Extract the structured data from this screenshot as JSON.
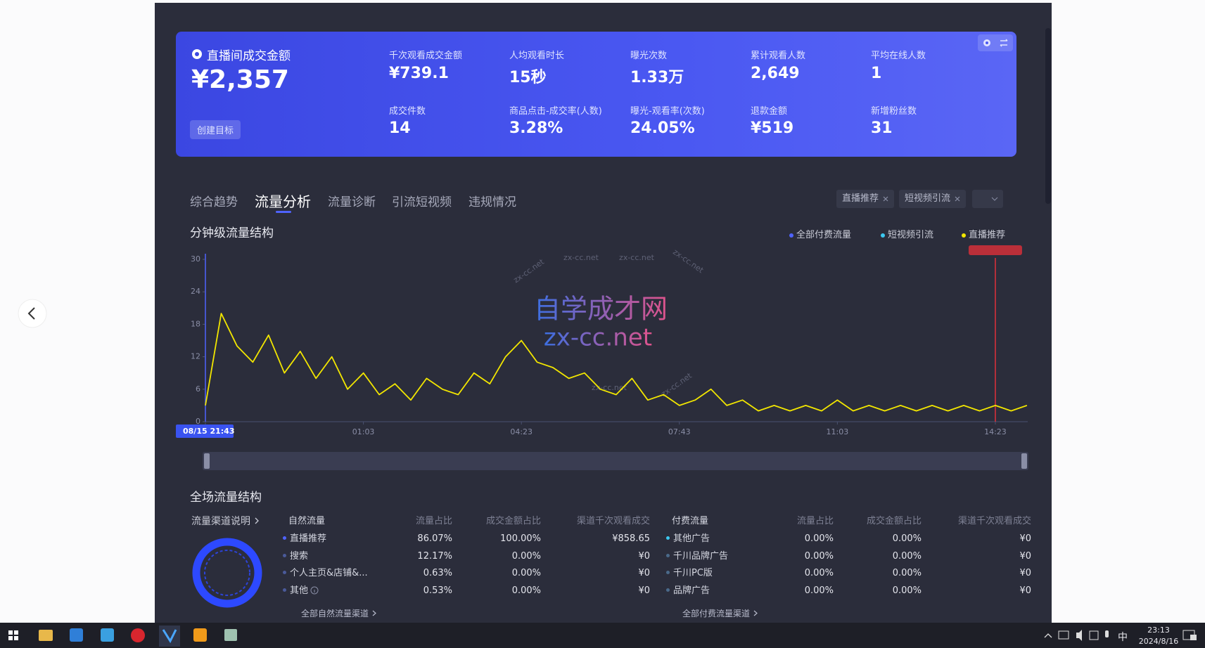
{
  "summary": {
    "title": "直播间成交金额",
    "value": "¥2,357",
    "button": "创建目标",
    "metrics": [
      {
        "label": "千次观看成交金额",
        "value": "¥739.1"
      },
      {
        "label": "人均观看时长",
        "value": "15秒"
      },
      {
        "label": "曝光次数",
        "value": "1.33万"
      },
      {
        "label": "累计观看人数",
        "value": "2,649"
      },
      {
        "label": "平均在线人数",
        "value": "1"
      },
      {
        "label": "成交件数",
        "value": "14"
      },
      {
        "label": "商品点击-成交率(人数)",
        "value": "3.28%"
      },
      {
        "label": "曝光-观看率(次数)",
        "value": "24.05%"
      },
      {
        "label": "退款金额",
        "value": "¥519"
      },
      {
        "label": "新增粉丝数",
        "value": "31"
      }
    ]
  },
  "tabs": {
    "items": [
      "综合趋势",
      "流量分析",
      "流量诊断",
      "引流短视频",
      "违规情况"
    ],
    "active": 1
  },
  "filters": [
    "直播推荐",
    "短视频引流"
  ],
  "chart_data": {
    "type": "line",
    "title": "分钟级流量结构",
    "other_series": [
      {
        "name": "全部付费流量",
        "color": "#4f63ff"
      },
      {
        "name": "短视频引流",
        "color": "#3cc8f0"
      }
    ],
    "x": [
      0,
      20,
      40,
      60,
      80,
      100,
      120,
      140,
      160,
      180,
      200,
      220,
      240,
      260,
      280,
      300,
      320,
      340,
      360,
      380,
      400,
      420,
      440,
      460,
      480,
      500,
      520,
      540,
      560,
      580,
      600,
      620,
      640,
      660,
      680,
      700,
      720,
      740,
      760,
      780,
      800,
      820,
      840,
      860,
      880,
      900,
      920,
      940,
      960,
      980,
      1000,
      1020,
      1040
    ],
    "series": [
      {
        "name": "直播推荐",
        "color": "#f2e600",
        "values": [
          3,
          20,
          14,
          11,
          16,
          9,
          13,
          8,
          12,
          6,
          9,
          5,
          7,
          4,
          8,
          6,
          5,
          9,
          7,
          12,
          15,
          11,
          10,
          8,
          9,
          6,
          5,
          8,
          4,
          5,
          3,
          4,
          6,
          3,
          4,
          2,
          3,
          2,
          3,
          2,
          4,
          2,
          3,
          2,
          3,
          2,
          3,
          2,
          3,
          2,
          3,
          2,
          3
        ]
      }
    ],
    "xlim": [
      0,
      1041
    ],
    "xticks": [
      {
        "value": 0,
        "label": "08/15 21:43"
      },
      {
        "value": 200,
        "label": "01:03"
      },
      {
        "value": 400,
        "label": "04:23"
      },
      {
        "value": 600,
        "label": "07:43"
      },
      {
        "value": 800,
        "label": "11:03"
      },
      {
        "value": 1000,
        "label": "14:23"
      }
    ],
    "ylim": [
      0,
      30
    ],
    "yticks": [
      0,
      6,
      12,
      18,
      24,
      30
    ]
  },
  "watermark": {
    "title": "自学成才网",
    "url": "zx-cc.net"
  },
  "traffic": {
    "title": "全场流量结构",
    "help": "流量渠道说明",
    "natural": {
      "headers": [
        "自然流量",
        "流量占比",
        "成交金额占比",
        "渠道千次观看成交"
      ],
      "rows": [
        [
          "直播推荐",
          "86.07%",
          "100.00%",
          "¥858.65"
        ],
        [
          "搜索",
          "12.17%",
          "0.00%",
          "¥0"
        ],
        [
          "个人主页&店铺&...",
          "0.63%",
          "0.00%",
          "¥0"
        ],
        [
          "其他",
          "0.53%",
          "0.00%",
          "¥0"
        ]
      ],
      "link": "全部自然流量渠道"
    },
    "paid": {
      "headers": [
        "付费流量",
        "流量占比",
        "成交金额占比",
        "渠道千次观看成交"
      ],
      "rows": [
        [
          "其他广告",
          "0.00%",
          "0.00%",
          "¥0"
        ],
        [
          "千川品牌广告",
          "0.00%",
          "0.00%",
          "¥0"
        ],
        [
          "千川PC版",
          "0.00%",
          "0.00%",
          "¥0"
        ],
        [
          "品牌广告",
          "0.00%",
          "0.00%",
          "¥0"
        ]
      ],
      "link": "全部付费流量渠道"
    }
  },
  "taskbar": {
    "time": "23:13",
    "date": "2024/8/16",
    "ime": "中"
  }
}
